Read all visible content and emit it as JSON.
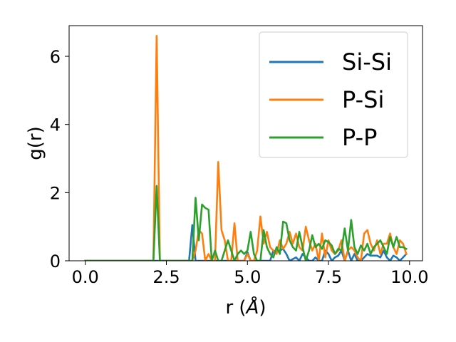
{
  "chart_data": {
    "type": "line",
    "xlabel": "r (",
    "xlabel_unit": "Å",
    "xlabel_close": ")",
    "ylabel": "g(r)",
    "xlim": [
      -0.5,
      10.4
    ],
    "ylim": [
      0,
      6.9
    ],
    "xticks": [
      "0.0",
      "2.5",
      "5.0",
      "7.5",
      "10.0"
    ],
    "xtick_values": [
      0,
      2.5,
      5,
      7.5,
      10
    ],
    "yticks": [
      "0",
      "2",
      "4",
      "6"
    ],
    "ytick_values": [
      0,
      2,
      4,
      6
    ],
    "legend_position": "upper right",
    "grid": false,
    "series": [
      {
        "name": "Si-Si",
        "color": "#1f77b4",
        "x": [
          0.0,
          3.1,
          3.2,
          3.3,
          3.4,
          3.5,
          4.5,
          4.8,
          4.9,
          5.0,
          5.1,
          5.5,
          5.7,
          5.8,
          5.9,
          6.0,
          6.1,
          6.2,
          6.3,
          6.5,
          6.6,
          6.7,
          6.8,
          6.9,
          7.0,
          7.1,
          7.2,
          7.3,
          7.4,
          7.5,
          7.6,
          7.7,
          7.8,
          7.9,
          8.0,
          8.1,
          8.2,
          8.3,
          8.4,
          8.5,
          8.6,
          8.7,
          8.8,
          8.9,
          9.0,
          9.1,
          9.2,
          9.3,
          9.4,
          9.5,
          9.6,
          9.7,
          9.8,
          9.9
        ],
        "y": [
          0.0,
          0.0,
          0.0,
          1.05,
          0.0,
          0.0,
          0.0,
          0.0,
          0.0,
          0.25,
          0.0,
          0.0,
          0.0,
          0.3,
          0.25,
          0.3,
          0.35,
          0.2,
          0.0,
          0.1,
          0.0,
          0.2,
          0.1,
          0.0,
          0.0,
          0.1,
          0.0,
          0.0,
          0.3,
          0.2,
          0.0,
          0.1,
          0.15,
          0.3,
          0.0,
          0.3,
          0.0,
          0.2,
          0.0,
          0.0,
          0.1,
          0.2,
          0.15,
          0.15,
          0.15,
          0.1,
          0.3,
          0.1,
          0.0,
          0.15,
          0.1,
          0.0,
          0.1,
          0.2
        ]
      },
      {
        "name": "P-Si",
        "color": "#ff7f0e",
        "x": [
          0.0,
          2.1,
          2.2,
          2.3,
          2.4,
          3.3,
          3.4,
          3.5,
          3.6,
          3.7,
          3.8,
          3.9,
          4.0,
          4.1,
          4.2,
          4.3,
          4.4,
          4.5,
          4.6,
          4.7,
          4.8,
          4.9,
          5.0,
          5.1,
          5.2,
          5.3,
          5.4,
          5.5,
          5.6,
          5.7,
          5.8,
          5.9,
          6.0,
          6.1,
          6.2,
          6.3,
          6.4,
          6.5,
          6.6,
          6.7,
          6.8,
          6.9,
          7.0,
          7.1,
          7.2,
          7.3,
          7.4,
          7.5,
          7.6,
          7.7,
          7.8,
          7.9,
          8.0,
          8.1,
          8.2,
          8.3,
          8.4,
          8.5,
          8.6,
          8.7,
          8.8,
          8.9,
          9.0,
          9.1,
          9.2,
          9.3,
          9.4,
          9.5,
          9.6,
          9.7,
          9.8,
          9.9
        ],
        "y": [
          0.0,
          0.0,
          6.6,
          0.0,
          0.0,
          0.0,
          0.3,
          0.9,
          0.8,
          0.0,
          0.2,
          0.0,
          0.0,
          2.9,
          0.9,
          0.6,
          0.0,
          0.0,
          1.1,
          0.0,
          0.0,
          0.0,
          0.2,
          0.0,
          0.0,
          0.3,
          1.3,
          0.5,
          0.85,
          0.4,
          0.3,
          0.2,
          0.6,
          0.35,
          0.5,
          0.85,
          0.5,
          0.8,
          0.4,
          0.3,
          1.0,
          0.6,
          0.3,
          0.5,
          0.0,
          0.8,
          0.1,
          0.6,
          0.3,
          0.2,
          0.3,
          0.6,
          0.0,
          0.3,
          0.4,
          0.3,
          0.1,
          0.0,
          0.8,
          0.9,
          0.5,
          0.3,
          0.6,
          0.2,
          0.5,
          0.5,
          0.8,
          0.4,
          0.2,
          0.6,
          0.5,
          0.2
        ]
      },
      {
        "name": "P-P",
        "color": "#2ca02c",
        "x": [
          0.0,
          2.1,
          2.2,
          2.3,
          2.4,
          3.3,
          3.4,
          3.5,
          3.6,
          3.7,
          3.8,
          3.9,
          4.0,
          4.1,
          4.2,
          4.3,
          4.4,
          4.5,
          4.6,
          4.7,
          4.8,
          4.9,
          5.0,
          5.1,
          5.2,
          5.3,
          5.4,
          5.5,
          5.6,
          5.7,
          5.8,
          5.9,
          6.0,
          6.1,
          6.2,
          6.3,
          6.4,
          6.5,
          6.6,
          6.7,
          6.8,
          6.9,
          7.0,
          7.1,
          7.2,
          7.3,
          7.4,
          7.5,
          7.6,
          7.7,
          7.8,
          7.9,
          8.0,
          8.1,
          8.2,
          8.3,
          8.4,
          8.5,
          8.6,
          8.7,
          8.8,
          8.9,
          9.0,
          9.1,
          9.2,
          9.3,
          9.4,
          9.5,
          9.6,
          9.7,
          9.8,
          9.9
        ],
        "y": [
          0.0,
          0.0,
          2.2,
          0.0,
          0.0,
          0.0,
          1.85,
          0.6,
          1.65,
          1.55,
          1.5,
          0.0,
          0.3,
          0.0,
          0.0,
          0.3,
          0.6,
          0.3,
          0.0,
          0.2,
          0.3,
          0.2,
          0.3,
          0.85,
          0.2,
          0.0,
          0.0,
          0.9,
          0.4,
          0.2,
          0.1,
          0.4,
          0.2,
          1.15,
          1.1,
          0.6,
          0.4,
          0.3,
          0.85,
          0.4,
          0.0,
          0.3,
          0.75,
          0.4,
          0.5,
          0.35,
          0.6,
          0.55,
          0.45,
          0.2,
          0.35,
          0.3,
          0.95,
          0.3,
          1.2,
          0.4,
          0.2,
          0.45,
          0.3,
          0.5,
          0.2,
          0.4,
          0.5,
          0.6,
          0.4,
          0.2,
          0.7,
          0.4,
          0.7,
          0.4,
          0.4,
          0.35
        ]
      }
    ]
  }
}
